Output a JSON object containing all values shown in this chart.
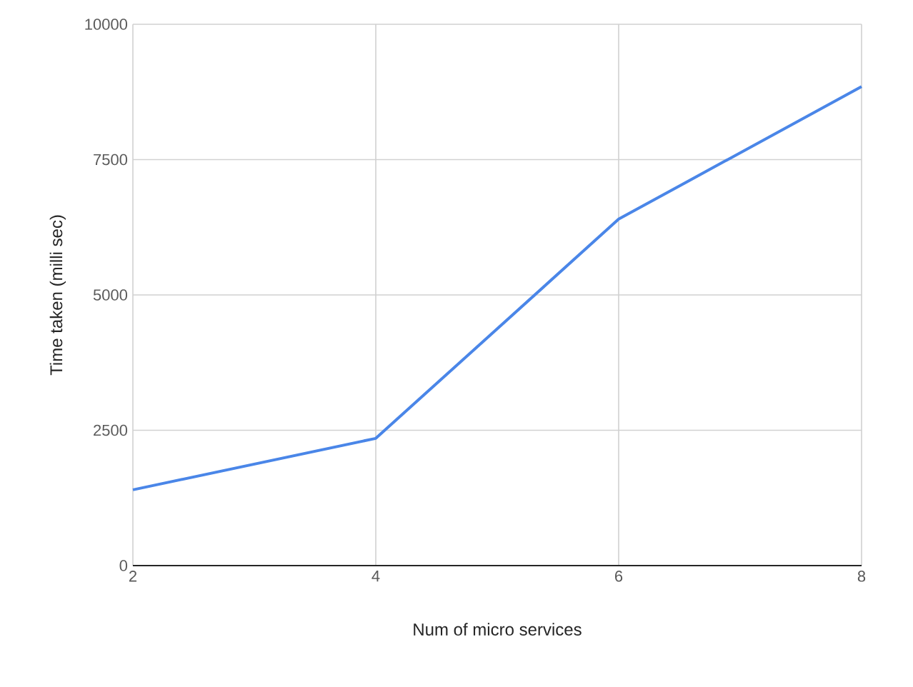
{
  "chart_data": {
    "type": "line",
    "xlabel": "Num of micro services",
    "ylabel": "Time taken (milli sec)",
    "x": [
      2,
      4,
      6,
      8
    ],
    "series": [
      {
        "color": "#4a86e8",
        "values": [
          1400,
          2350,
          6400,
          8850
        ]
      }
    ],
    "xlim": [
      2,
      8
    ],
    "xticks": [
      2,
      4,
      6,
      8
    ],
    "ylim": [
      0,
      10000
    ],
    "yticks": [
      0,
      2500,
      5000,
      7500,
      10000
    ],
    "grid": true,
    "marker": "none",
    "line_style": "solid"
  }
}
